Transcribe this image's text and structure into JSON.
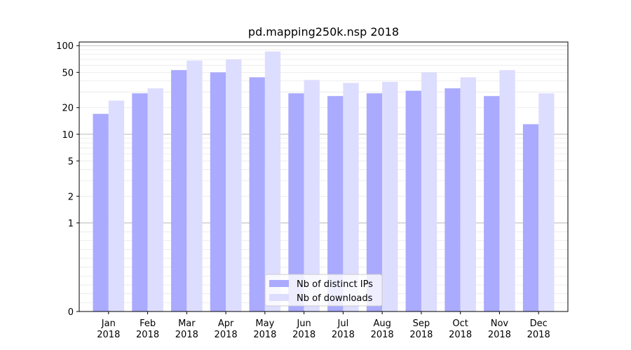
{
  "chart_data": {
    "type": "bar",
    "title": "pd.mapping250k.nsp 2018",
    "xlabel": "",
    "ylabel": "",
    "yscale": "symlog",
    "ylim": [
      0,
      110
    ],
    "yticks": [
      0,
      1,
      2,
      5,
      10,
      20,
      50,
      100
    ],
    "ytick_labels": [
      "0",
      "1",
      "2",
      "5",
      "10",
      "20",
      "50",
      "100"
    ],
    "categories": [
      "Jan",
      "Feb",
      "Mar",
      "Apr",
      "May",
      "Jun",
      "Jul",
      "Aug",
      "Sep",
      "Oct",
      "Nov",
      "Dec"
    ],
    "category_year": "2018",
    "series": [
      {
        "name": "Nb of distinct IPs",
        "color": "#aaaaff",
        "values": [
          17,
          29,
          53,
          50,
          44,
          29,
          27,
          29,
          31,
          33,
          27,
          13
        ]
      },
      {
        "name": "Nb of downloads",
        "color": "#ddddff",
        "values": [
          24,
          33,
          68,
          70,
          86,
          41,
          38,
          39,
          50,
          44,
          53,
          29
        ]
      }
    ],
    "legend_position": "bottom-center",
    "grid": "horizontal"
  }
}
